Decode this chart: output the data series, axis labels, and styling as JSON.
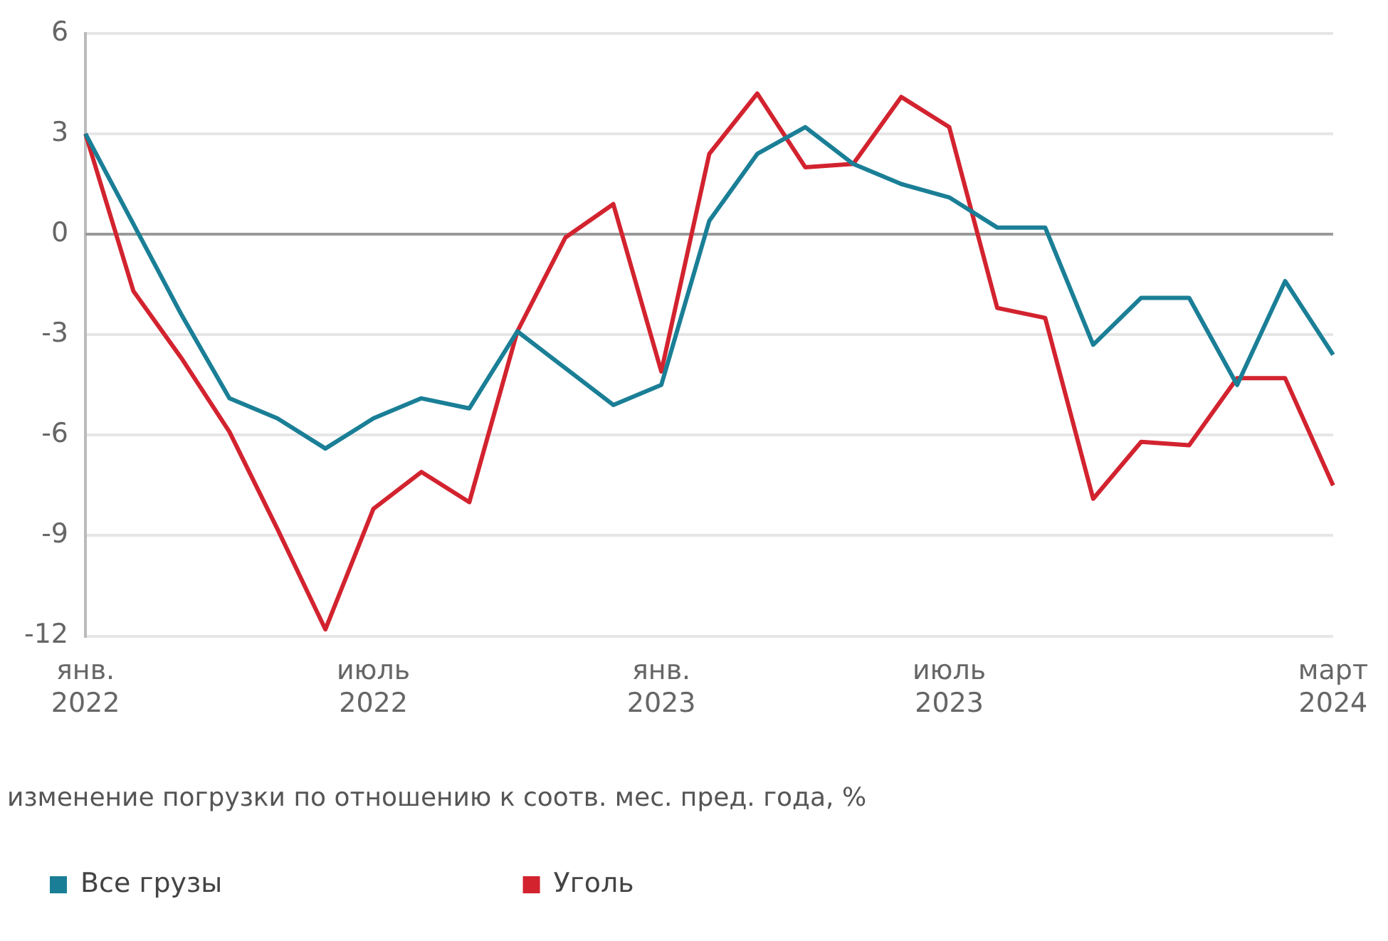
{
  "chart_data": {
    "type": "line",
    "categories": [
      "янв.\n2022",
      null,
      null,
      null,
      null,
      null,
      "июль\n2022",
      null,
      null,
      null,
      null,
      null,
      "янв.\n2023",
      null,
      null,
      null,
      null,
      null,
      "июль\n2023",
      null,
      null,
      null,
      null,
      null,
      null,
      null,
      "март\n2024"
    ],
    "series": [
      {
        "name": "Все грузы",
        "color": "#1a7f96",
        "values": [
          3.0,
          0.3,
          -2.4,
          -4.9,
          -5.5,
          -6.4,
          -5.5,
          -4.9,
          -5.2,
          -2.9,
          -4.0,
          -5.1,
          -4.5,
          0.4,
          2.4,
          3.2,
          2.1,
          1.5,
          1.1,
          0.2,
          0.2,
          -3.3,
          -1.9,
          -1.9,
          -4.5,
          -1.4,
          -3.6
        ]
      },
      {
        "name": "Уголь",
        "color": "#d2232f",
        "values": [
          3.0,
          -1.7,
          -3.7,
          -5.9,
          -8.8,
          -11.8,
          -8.2,
          -7.1,
          -8.0,
          -2.9,
          -0.1,
          0.9,
          -4.1,
          2.4,
          4.2,
          2.0,
          2.1,
          4.1,
          3.2,
          -2.2,
          -2.5,
          -7.9,
          -6.2,
          -6.3,
          -4.3,
          -4.3,
          -7.5
        ]
      }
    ],
    "ylim": [
      -12,
      6
    ],
    "yticks": [
      -12,
      -9,
      -6,
      -3,
      0,
      3,
      6
    ],
    "ref_lines": [
      {
        "axis": "y",
        "value": 0,
        "color": "#999999"
      }
    ],
    "grid": "y",
    "legend": "bottom",
    "marker": "none",
    "line_style": "solid",
    "annotations": [
      "изменение погрузки по отношению к соотв. мес. пред. года, %"
    ]
  }
}
